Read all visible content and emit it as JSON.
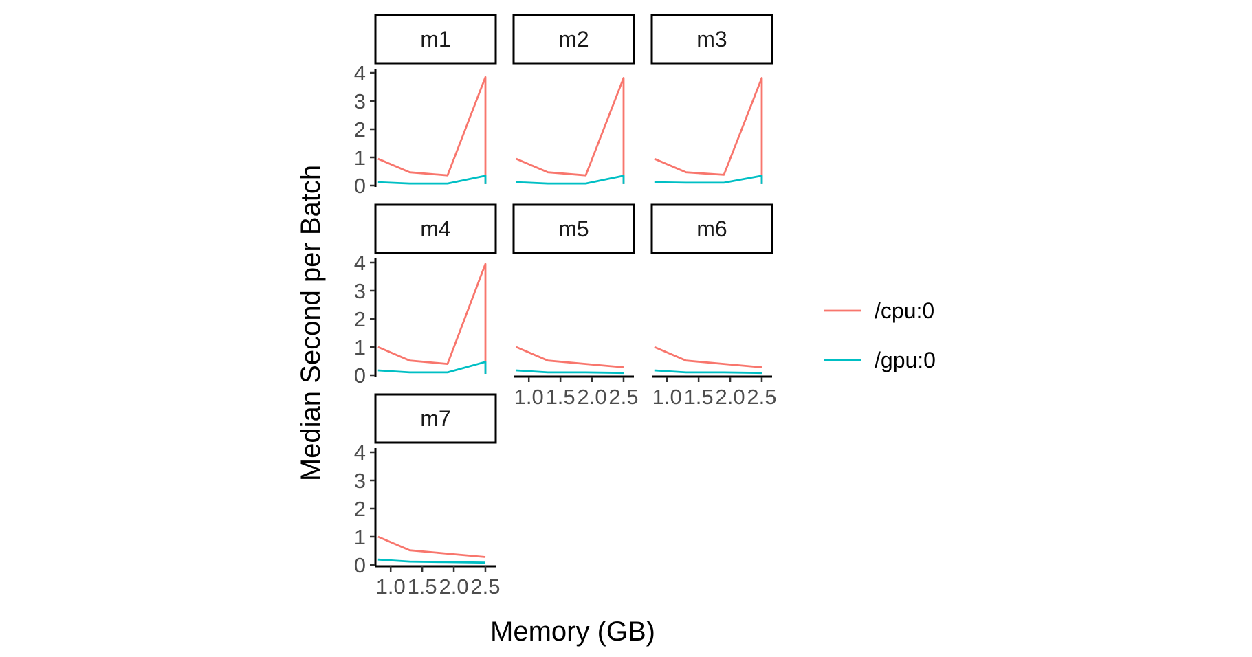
{
  "chart_data": {
    "type": "line",
    "facet_layout": "wrap",
    "xlabel": "Memory (GB)",
    "ylabel": "Median Second per Batch",
    "ylim": [
      0,
      4.1
    ],
    "xlim": [
      0.78,
      2.62
    ],
    "yticks": [
      0,
      1,
      2,
      3,
      4
    ],
    "xticks": [
      1.0,
      1.5,
      2.0,
      2.5
    ],
    "ytick_labels": [
      "0",
      "1",
      "2",
      "3",
      "4"
    ],
    "xtick_labels": [
      "1.0",
      "1.5",
      "2.0",
      "2.5"
    ],
    "legend_position": "right",
    "series_colors": {
      "/cpu:0": "#F8766D",
      "/gpu:0": "#00BFC4"
    },
    "legend": [
      {
        "name": "/cpu:0",
        "color": "#F8766D"
      },
      {
        "name": "/gpu:0",
        "color": "#00BFC4"
      }
    ],
    "panels": [
      {
        "name": "m1",
        "series": [
          {
            "name": "/cpu:0",
            "x": [
              0.8,
              1.3,
              1.9,
              2.5,
              2.5
            ],
            "y": [
              0.95,
              0.47,
              0.36,
              3.85,
              0.05
            ]
          },
          {
            "name": "/gpu:0",
            "x": [
              0.8,
              1.3,
              1.9,
              2.5,
              2.5
            ],
            "y": [
              0.12,
              0.07,
              0.07,
              0.35,
              0.05
            ]
          }
        ]
      },
      {
        "name": "m2",
        "series": [
          {
            "name": "/cpu:0",
            "x": [
              0.8,
              1.3,
              1.9,
              2.5,
              2.5
            ],
            "y": [
              0.95,
              0.47,
              0.36,
              3.82,
              0.05
            ]
          },
          {
            "name": "/gpu:0",
            "x": [
              0.8,
              1.3,
              1.9,
              2.5,
              2.5
            ],
            "y": [
              0.12,
              0.07,
              0.07,
              0.35,
              0.05
            ]
          }
        ]
      },
      {
        "name": "m3",
        "series": [
          {
            "name": "/cpu:0",
            "x": [
              0.8,
              1.3,
              1.9,
              2.5,
              2.5
            ],
            "y": [
              0.95,
              0.47,
              0.38,
              3.82,
              0.05
            ]
          },
          {
            "name": "/gpu:0",
            "x": [
              0.8,
              1.3,
              1.9,
              2.5,
              2.5
            ],
            "y": [
              0.12,
              0.1,
              0.1,
              0.35,
              0.05
            ]
          }
        ]
      },
      {
        "name": "m4",
        "series": [
          {
            "name": "/cpu:0",
            "x": [
              0.8,
              1.3,
              1.9,
              2.5,
              2.5
            ],
            "y": [
              1.0,
              0.52,
              0.4,
              3.95,
              0.05
            ]
          },
          {
            "name": "/gpu:0",
            "x": [
              0.8,
              1.3,
              1.9,
              2.5,
              2.5
            ],
            "y": [
              0.17,
              0.1,
              0.1,
              0.47,
              0.05
            ]
          }
        ]
      },
      {
        "name": "m5",
        "series": [
          {
            "name": "/cpu:0",
            "x": [
              0.8,
              1.3,
              1.9,
              2.5
            ],
            "y": [
              1.0,
              0.52,
              0.4,
              0.28
            ]
          },
          {
            "name": "/gpu:0",
            "x": [
              0.8,
              1.3,
              1.9,
              2.5
            ],
            "y": [
              0.17,
              0.1,
              0.1,
              0.08
            ]
          }
        ]
      },
      {
        "name": "m6",
        "series": [
          {
            "name": "/cpu:0",
            "x": [
              0.8,
              1.3,
              1.9,
              2.5
            ],
            "y": [
              1.0,
              0.52,
              0.4,
              0.28
            ]
          },
          {
            "name": "/gpu:0",
            "x": [
              0.8,
              1.3,
              1.9,
              2.5
            ],
            "y": [
              0.17,
              0.1,
              0.1,
              0.08
            ]
          }
        ]
      },
      {
        "name": "m7",
        "series": [
          {
            "name": "/cpu:0",
            "x": [
              0.8,
              1.3,
              1.9,
              2.5
            ],
            "y": [
              1.0,
              0.52,
              0.4,
              0.28
            ]
          },
          {
            "name": "/gpu:0",
            "x": [
              0.8,
              1.3,
              1.9,
              2.5
            ],
            "y": [
              0.19,
              0.12,
              0.1,
              0.08
            ]
          }
        ]
      }
    ]
  }
}
